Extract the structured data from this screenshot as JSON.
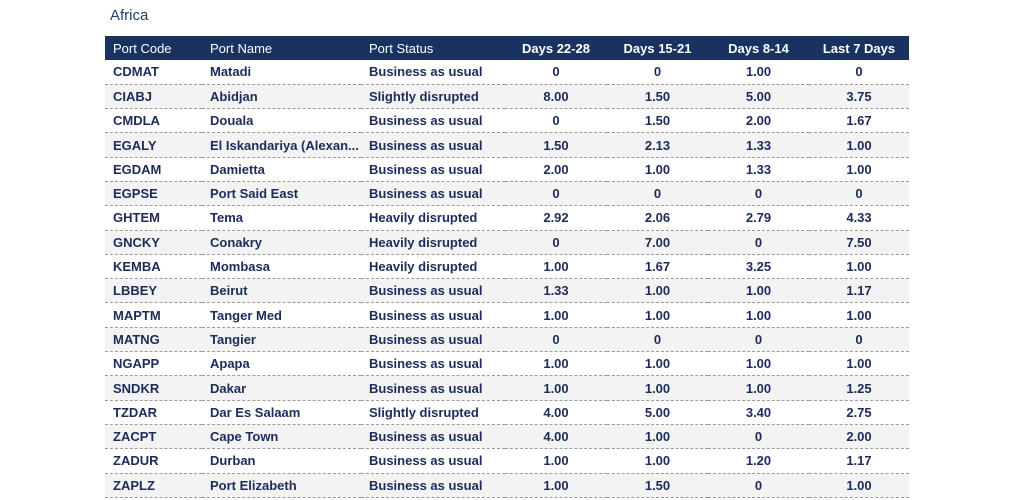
{
  "region": {
    "title": "Africa"
  },
  "table": {
    "columns": {
      "code": "Port Code",
      "name": "Port Name",
      "status": "Port Status",
      "d22_28": "Days 22-28",
      "d15_21": "Days 15-21",
      "d8_14": "Days 8-14",
      "last7": "Last 7 Days"
    },
    "rows": [
      {
        "code": "CDMAT",
        "name": "Matadi",
        "status": "Business as usual",
        "d22_28": "0",
        "d15_21": "0",
        "d8_14": "1.00",
        "last7": "0"
      },
      {
        "code": "CIABJ",
        "name": "Abidjan",
        "status": "Slightly disrupted",
        "d22_28": "8.00",
        "d15_21": "1.50",
        "d8_14": "5.00",
        "last7": "3.75"
      },
      {
        "code": "CMDLA",
        "name": "Douala",
        "status": "Business as usual",
        "d22_28": "0",
        "d15_21": "1.50",
        "d8_14": "2.00",
        "last7": "1.67"
      },
      {
        "code": "EGALY",
        "name": "El Iskandariya (Alexan...",
        "status": "Business as usual",
        "d22_28": "1.50",
        "d15_21": "2.13",
        "d8_14": "1.33",
        "last7": "1.00"
      },
      {
        "code": "EGDAM",
        "name": "Damietta",
        "status": "Business as usual",
        "d22_28": "2.00",
        "d15_21": "1.00",
        "d8_14": "1.33",
        "last7": "1.00"
      },
      {
        "code": "EGPSE",
        "name": "Port Said East",
        "status": "Business as usual",
        "d22_28": "0",
        "d15_21": "0",
        "d8_14": "0",
        "last7": "0"
      },
      {
        "code": "GHTEM",
        "name": "Tema",
        "status": "Heavily disrupted",
        "d22_28": "2.92",
        "d15_21": "2.06",
        "d8_14": "2.79",
        "last7": "4.33"
      },
      {
        "code": "GNCKY",
        "name": "Conakry",
        "status": "Heavily disrupted",
        "d22_28": "0",
        "d15_21": "7.00",
        "d8_14": "0",
        "last7": "7.50"
      },
      {
        "code": "KEMBA",
        "name": "Mombasa",
        "status": "Heavily disrupted",
        "d22_28": "1.00",
        "d15_21": "1.67",
        "d8_14": "3.25",
        "last7": "1.00"
      },
      {
        "code": "LBBEY",
        "name": "Beirut",
        "status": "Business as usual",
        "d22_28": "1.33",
        "d15_21": "1.00",
        "d8_14": "1.00",
        "last7": "1.17"
      },
      {
        "code": "MAPTM",
        "name": "Tanger Med",
        "status": "Business as usual",
        "d22_28": "1.00",
        "d15_21": "1.00",
        "d8_14": "1.00",
        "last7": "1.00"
      },
      {
        "code": "MATNG",
        "name": "Tangier",
        "status": "Business as usual",
        "d22_28": "0",
        "d15_21": "0",
        "d8_14": "0",
        "last7": "0"
      },
      {
        "code": "NGAPP",
        "name": "Apapa",
        "status": "Business as usual",
        "d22_28": "1.00",
        "d15_21": "1.00",
        "d8_14": "1.00",
        "last7": "1.00"
      },
      {
        "code": "SNDKR",
        "name": "Dakar",
        "status": "Business as usual",
        "d22_28": "1.00",
        "d15_21": "1.00",
        "d8_14": "1.00",
        "last7": "1.25"
      },
      {
        "code": "TZDAR",
        "name": "Dar Es Salaam",
        "status": "Slightly disrupted",
        "d22_28": "4.00",
        "d15_21": "5.00",
        "d8_14": "3.40",
        "last7": "2.75"
      },
      {
        "code": "ZACPT",
        "name": "Cape Town",
        "status": "Business as usual",
        "d22_28": "4.00",
        "d15_21": "1.00",
        "d8_14": "0",
        "last7": "2.00"
      },
      {
        "code": "ZADUR",
        "name": "Durban",
        "status": "Business as usual",
        "d22_28": "1.00",
        "d15_21": "1.00",
        "d8_14": "1.20",
        "last7": "1.17"
      },
      {
        "code": "ZAPLZ",
        "name": "Port Elizabeth",
        "status": "Business as usual",
        "d22_28": "1.00",
        "d15_21": "1.50",
        "d8_14": "0",
        "last7": "1.00"
      }
    ]
  },
  "colors": {
    "header_bg": "#1a3260",
    "text": "#1c2b5a",
    "row_alt": "#f3f3f3"
  }
}
